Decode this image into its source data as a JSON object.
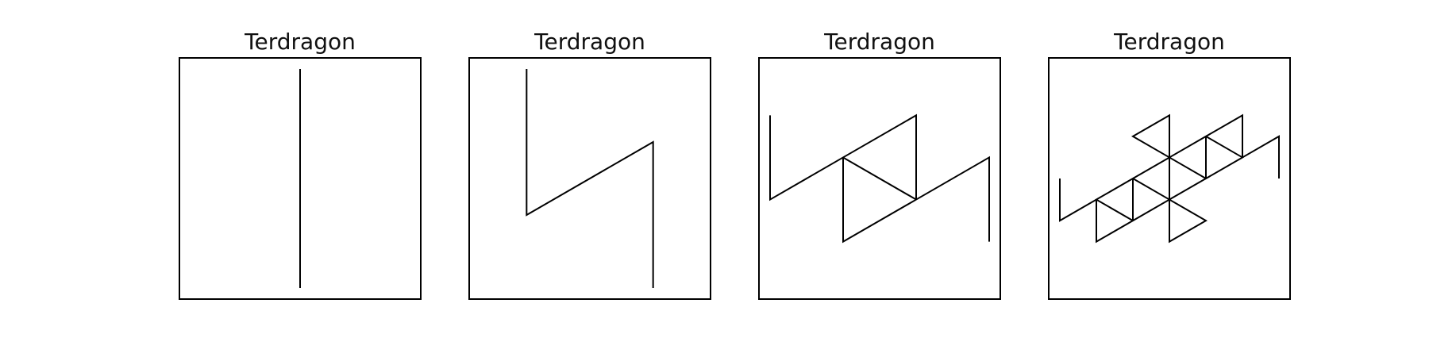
{
  "figure": {
    "panels": [
      {
        "title": "Terdragon",
        "iteration": 0
      },
      {
        "title": "Terdragon",
        "iteration": 1
      },
      {
        "title": "Terdragon",
        "iteration": 2
      },
      {
        "title": "Terdragon",
        "iteration": 3
      }
    ]
  },
  "colors": {
    "background": "#ffffff",
    "stroke": "#000000",
    "text": "#111111"
  }
}
